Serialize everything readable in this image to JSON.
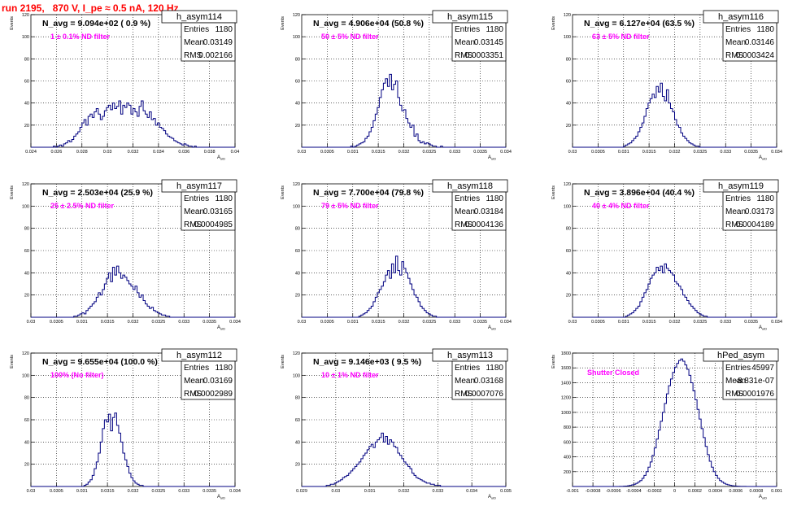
{
  "run_title": "run 2195,   870 V, I_pe ≈ 0.5 nA, 120 Hz",
  "stats_labels": {
    "entries": "Entries",
    "mean": "Mean",
    "rms": "RMS"
  },
  "colors": {
    "histogram": "#000080",
    "annotation": "#ff00ff",
    "title": "#ff0000"
  },
  "chart_data": [
    {
      "type": "histogram",
      "name": "h_asym114",
      "ylabel": "Events",
      "xlabel": "A_uiD",
      "xlim": [
        0.024,
        0.04
      ],
      "ylim": [
        0,
        120
      ],
      "xticks": [
        "0.024",
        "0.026",
        "0.028",
        "0.03",
        "0.032",
        "0.034",
        "0.036",
        "0.038",
        "0.04"
      ],
      "yticks": [
        "20",
        "40",
        "60",
        "80",
        "100",
        "120"
      ],
      "nbins": 100,
      "stats": {
        "entries": "1180",
        "mean": "0.03149",
        "rms": "0.002166"
      },
      "navg": "N_avg = 9.094e+02 ( 0.9 %)",
      "note": "1 ± 0.1% ND filter",
      "peak_count": 42,
      "values": [
        0,
        0,
        0,
        0,
        0,
        0,
        0,
        0,
        0,
        0,
        0,
        1,
        0,
        1,
        2,
        1,
        3,
        4,
        6,
        5,
        7,
        10,
        12,
        14,
        18,
        22,
        25,
        20,
        28,
        30,
        27,
        32,
        35,
        30,
        25,
        28,
        33,
        36,
        38,
        34,
        40,
        35,
        37,
        42,
        30,
        38,
        36,
        40,
        38,
        30,
        35,
        32,
        28,
        37,
        42,
        33,
        30,
        27,
        32,
        25,
        26,
        20,
        22,
        18,
        17,
        15,
        12,
        10,
        9,
        8,
        6,
        5,
        4,
        3,
        2,
        3,
        2,
        1,
        1,
        0,
        1,
        0,
        0,
        0,
        0,
        0,
        0,
        0,
        0,
        0,
        0,
        0,
        0,
        0,
        0,
        0,
        0,
        0,
        0,
        0
      ]
    },
    {
      "type": "histogram",
      "name": "h_asym115",
      "ylabel": "Events",
      "xlabel": "A_uiD",
      "xlim": [
        0.03,
        0.034
      ],
      "ylim": [
        0,
        120
      ],
      "xticks": [
        "0.03",
        "0.0305",
        "0.031",
        "0.0315",
        "0.032",
        "0.0325",
        "0.033",
        "0.0335",
        "0.034"
      ],
      "yticks": [
        "20",
        "40",
        "60",
        "80",
        "100",
        "120"
      ],
      "nbins": 100,
      "stats": {
        "entries": "1180",
        "mean": "0.03145",
        "rms": "0.0003351"
      },
      "navg": "N_avg = 4.906e+04 (50.8 %)",
      "note": "50 ± 5% ND filter",
      "peak_count": 66,
      "values": [
        0,
        0,
        0,
        0,
        0,
        0,
        0,
        0,
        0,
        0,
        0,
        0,
        0,
        0,
        0,
        0,
        0,
        0,
        0,
        0,
        0,
        0,
        0,
        0,
        1,
        0,
        1,
        2,
        3,
        4,
        5,
        8,
        10,
        14,
        18,
        24,
        30,
        36,
        45,
        52,
        58,
        62,
        55,
        66,
        52,
        57,
        60,
        45,
        38,
        33,
        34,
        26,
        22,
        18,
        20,
        10,
        12,
        6,
        4,
        5,
        3,
        4,
        3,
        2,
        1,
        1,
        0,
        0,
        1,
        0,
        0,
        0,
        0,
        0,
        0,
        0,
        0,
        0,
        0,
        0,
        0,
        0,
        0,
        0,
        0,
        0,
        0,
        0,
        0,
        0,
        0,
        0,
        0,
        0,
        0,
        0,
        0,
        0,
        0,
        0
      ]
    },
    {
      "type": "histogram",
      "name": "h_asym116",
      "ylabel": "Events",
      "xlabel": "A_uiD",
      "xlim": [
        0.03,
        0.034
      ],
      "ylim": [
        0,
        120
      ],
      "xticks": [
        "0.03",
        "0.0305",
        "0.031",
        "0.0315",
        "0.032",
        "0.0325",
        "0.033",
        "0.0335",
        "0.034"
      ],
      "yticks": [
        "20",
        "40",
        "60",
        "80",
        "100",
        "120"
      ],
      "nbins": 100,
      "stats": {
        "entries": "1180",
        "mean": "0.03146",
        "rms": "0.0003424"
      },
      "navg": "N_avg = 6.127e+04 (63.5 %)",
      "note": "63 ± 5% ND filter",
      "peak_count": 58,
      "values": [
        0,
        0,
        0,
        0,
        0,
        0,
        0,
        0,
        0,
        0,
        0,
        0,
        0,
        0,
        0,
        0,
        0,
        0,
        0,
        0,
        0,
        0,
        0,
        0,
        0,
        1,
        2,
        3,
        4,
        6,
        8,
        10,
        14,
        18,
        22,
        28,
        35,
        40,
        44,
        48,
        45,
        55,
        50,
        58,
        46,
        42,
        52,
        40,
        35,
        32,
        25,
        20,
        18,
        13,
        10,
        8,
        6,
        4,
        3,
        2,
        1,
        1,
        0,
        0,
        0,
        0,
        0,
        0,
        0,
        0,
        0,
        0,
        0,
        0,
        0,
        0,
        0,
        0,
        0,
        0,
        0,
        0,
        0,
        0,
        0,
        0,
        0,
        0,
        0,
        0,
        0,
        0,
        0,
        0,
        0,
        0,
        0,
        0,
        0,
        0
      ]
    },
    {
      "type": "histogram",
      "name": "h_asym117",
      "ylabel": "Events",
      "xlabel": "A_uiD",
      "xlim": [
        0.03,
        0.034
      ],
      "ylim": [
        0,
        120
      ],
      "xticks": [
        "0.03",
        "0.0305",
        "0.031",
        "0.0315",
        "0.032",
        "0.0325",
        "0.033",
        "0.0335",
        "0.034"
      ],
      "yticks": [
        "20",
        "40",
        "60",
        "80",
        "100",
        "120"
      ],
      "nbins": 100,
      "stats": {
        "entries": "1180",
        "mean": "0.03165",
        "rms": "0.0004985"
      },
      "navg": "N_avg = 2.503e+04 (25.9 %)",
      "note": "25 ± 2.5% ND filter",
      "peak_count": 46,
      "values": [
        0,
        0,
        0,
        0,
        0,
        0,
        0,
        0,
        0,
        0,
        0,
        0,
        0,
        0,
        0,
        0,
        0,
        0,
        0,
        0,
        0,
        1,
        1,
        2,
        3,
        4,
        3,
        6,
        8,
        10,
        12,
        14,
        18,
        22,
        20,
        25,
        30,
        35,
        40,
        32,
        45,
        38,
        46,
        40,
        35,
        38,
        36,
        33,
        30,
        28,
        25,
        28,
        22,
        18,
        20,
        15,
        12,
        10,
        8,
        9,
        6,
        5,
        4,
        3,
        2,
        2,
        1,
        1,
        0,
        0,
        0,
        0,
        0,
        0,
        0,
        0,
        0,
        0,
        0,
        0,
        0,
        0,
        0,
        0,
        0,
        0,
        0,
        0,
        0,
        0,
        0,
        0,
        0,
        0,
        0,
        0,
        0,
        0,
        0,
        0
      ]
    },
    {
      "type": "histogram",
      "name": "h_asym118",
      "ylabel": "Events",
      "xlabel": "A_uiD",
      "xlim": [
        0.03,
        0.034
      ],
      "ylim": [
        0,
        120
      ],
      "xticks": [
        "0.03",
        "0.0305",
        "0.031",
        "0.0315",
        "0.032",
        "0.0325",
        "0.033",
        "0.0335",
        "0.034"
      ],
      "yticks": [
        "20",
        "40",
        "60",
        "80",
        "100",
        "120"
      ],
      "nbins": 100,
      "stats": {
        "entries": "1180",
        "mean": "0.03184",
        "rms": "0.0004136"
      },
      "navg": "N_avg = 7.700e+04 (79.8 %)",
      "note": "79 ± 5% ND filter",
      "peak_count": 55,
      "values": [
        0,
        0,
        0,
        0,
        0,
        0,
        0,
        0,
        0,
        0,
        0,
        0,
        0,
        0,
        0,
        0,
        0,
        0,
        0,
        0,
        0,
        0,
        0,
        0,
        0,
        0,
        0,
        0,
        1,
        2,
        3,
        4,
        6,
        8,
        10,
        14,
        18,
        22,
        25,
        28,
        32,
        38,
        42,
        35,
        48,
        40,
        55,
        42,
        38,
        50,
        44,
        40,
        35,
        30,
        25,
        20,
        18,
        14,
        10,
        8,
        6,
        4,
        3,
        2,
        1,
        1,
        0,
        0,
        0,
        0,
        0,
        0,
        0,
        0,
        0,
        0,
        0,
        0,
        0,
        0,
        0,
        0,
        0,
        0,
        0,
        0,
        0,
        0,
        0,
        0,
        0,
        0,
        0,
        0,
        0,
        0,
        0,
        0,
        0,
        0
      ]
    },
    {
      "type": "histogram",
      "name": "h_asym119",
      "ylabel": "Events",
      "xlabel": "A_uiD",
      "xlim": [
        0.03,
        0.034
      ],
      "ylim": [
        0,
        120
      ],
      "xticks": [
        "0.03",
        "0.0305",
        "0.031",
        "0.0315",
        "0.032",
        "0.0325",
        "0.033",
        "0.0335",
        "0.034"
      ],
      "yticks": [
        "20",
        "40",
        "60",
        "80",
        "100",
        "120"
      ],
      "nbins": 100,
      "stats": {
        "entries": "1180",
        "mean": "0.03173",
        "rms": "0.0004189"
      },
      "navg": "N_avg = 3.896e+04 (40.4 %)",
      "note": "40 ± 4% ND filter",
      "peak_count": 48,
      "values": [
        0,
        0,
        0,
        0,
        0,
        0,
        0,
        0,
        0,
        0,
        0,
        0,
        0,
        0,
        0,
        0,
        0,
        0,
        0,
        0,
        0,
        0,
        0,
        0,
        0,
        0,
        1,
        2,
        3,
        4,
        6,
        8,
        10,
        14,
        18,
        22,
        25,
        30,
        35,
        38,
        40,
        45,
        42,
        46,
        40,
        48,
        44,
        42,
        40,
        38,
        32,
        30,
        28,
        25,
        20,
        18,
        15,
        12,
        10,
        8,
        6,
        4,
        3,
        2,
        1,
        1,
        0,
        0,
        0,
        0,
        0,
        0,
        0,
        0,
        0,
        0,
        0,
        0,
        0,
        0,
        0,
        0,
        0,
        0,
        0,
        0,
        0,
        0,
        0,
        0,
        0,
        0,
        0,
        0,
        0,
        0,
        0,
        0,
        0,
        0
      ]
    },
    {
      "type": "histogram",
      "name": "h_asym112",
      "ylabel": "Events",
      "xlabel": "A_uiD",
      "xlim": [
        0.03,
        0.034
      ],
      "ylim": [
        0,
        120
      ],
      "xticks": [
        "0.03",
        "0.0305",
        "0.031",
        "0.0315",
        "0.032",
        "0.0325",
        "0.033",
        "0.0335",
        "0.034"
      ],
      "yticks": [
        "20",
        "40",
        "60",
        "80",
        "100",
        "120"
      ],
      "nbins": 100,
      "stats": {
        "entries": "1180",
        "mean": "0.03169",
        "rms": "0.0002989"
      },
      "navg": "N_avg = 9.655e+04 (100.0 %)",
      "note": "100% (No filter)",
      "peak_count": 68,
      "values": [
        0,
        0,
        0,
        0,
        0,
        0,
        0,
        0,
        0,
        0,
        0,
        0,
        0,
        0,
        0,
        0,
        0,
        0,
        0,
        0,
        0,
        0,
        0,
        0,
        0,
        0,
        1,
        2,
        4,
        6,
        10,
        16,
        22,
        30,
        40,
        52,
        60,
        58,
        65,
        50,
        62,
        66,
        55,
        48,
        40,
        30,
        24,
        18,
        12,
        8,
        5,
        3,
        2,
        1,
        1,
        0,
        0,
        0,
        0,
        0,
        0,
        0,
        0,
        0,
        0,
        0,
        0,
        0,
        0,
        0,
        0,
        0,
        0,
        0,
        0,
        0,
        0,
        0,
        0,
        0,
        0,
        0,
        0,
        0,
        0,
        0,
        0,
        0,
        0,
        0,
        0,
        0,
        0,
        0,
        0,
        0,
        0,
        0,
        0,
        0
      ]
    },
    {
      "type": "histogram",
      "name": "h_asym113",
      "ylabel": "Events",
      "xlabel": "A_uiD",
      "xlim": [
        0.029,
        0.035
      ],
      "ylim": [
        0,
        120
      ],
      "xticks": [
        "0.029",
        "0.03",
        "0.031",
        "0.032",
        "0.033",
        "0.034",
        "0.035"
      ],
      "yticks": [
        "20",
        "40",
        "60",
        "80",
        "100",
        "120"
      ],
      "nbins": 100,
      "stats": {
        "entries": "1180",
        "mean": "0.03168",
        "rms": "0.0007076"
      },
      "navg": "N_avg = 9.146e+03 ( 9.5 %)",
      "note": "10 ± 1% ND filter",
      "peak_count": 48,
      "values": [
        0,
        0,
        0,
        0,
        0,
        0,
        0,
        0,
        0,
        0,
        0,
        0,
        1,
        1,
        2,
        2,
        3,
        4,
        5,
        6,
        8,
        9,
        10,
        12,
        14,
        16,
        18,
        20,
        22,
        25,
        28,
        30,
        33,
        36,
        38,
        35,
        40,
        42,
        44,
        48,
        40,
        45,
        38,
        42,
        40,
        36,
        35,
        30,
        28,
        25,
        22,
        20,
        18,
        16,
        12,
        10,
        8,
        7,
        6,
        5,
        4,
        3,
        3,
        2,
        2,
        1,
        1,
        1,
        0,
        0,
        0,
        0,
        0,
        0,
        0,
        0,
        0,
        0,
        0,
        0,
        0,
        0,
        0,
        0,
        0,
        0,
        0,
        0,
        0,
        0,
        0,
        0,
        0,
        0,
        0,
        0,
        0,
        0,
        0,
        0
      ]
    },
    {
      "type": "histogram",
      "name": "hPed_asym",
      "ylabel": "Events",
      "xlabel": "A_uiD",
      "xlim": [
        -0.001,
        0.001
      ],
      "ylim": [
        0,
        1800
      ],
      "xticks": [
        "-0.001",
        "-0.0008",
        "-0.0006",
        "-0.0004",
        "-0.0002",
        "0",
        "0.0002",
        "0.0004",
        "0.0006",
        "0.0008",
        "0.001"
      ],
      "yticks": [
        "200",
        "400",
        "600",
        "800",
        "1000",
        "1200",
        "1400",
        "1600",
        "1800"
      ],
      "nbins": 100,
      "stats": {
        "entries": "45997",
        "mean": "-8.831e-07",
        "rms": "0.0001976"
      },
      "navg": "",
      "note": "Shutter Closed",
      "peak_count": 1720,
      "values": [
        0,
        0,
        0,
        0,
        0,
        0,
        0,
        0,
        0,
        0,
        0,
        0,
        0,
        0,
        0,
        0,
        0,
        0,
        0,
        0,
        0,
        0,
        0,
        1,
        2,
        4,
        6,
        10,
        15,
        22,
        30,
        42,
        60,
        80,
        110,
        150,
        200,
        260,
        330,
        420,
        520,
        640,
        760,
        880,
        1000,
        1120,
        1250,
        1360,
        1450,
        1540,
        1610,
        1660,
        1700,
        1720,
        1690,
        1640,
        1580,
        1500,
        1400,
        1290,
        1170,
        1040,
        910,
        780,
        660,
        540,
        430,
        340,
        260,
        200,
        150,
        110,
        80,
        60,
        42,
        30,
        22,
        15,
        10,
        7,
        4,
        3,
        2,
        1,
        1,
        0,
        0,
        0,
        0,
        0,
        0,
        0,
        0,
        0,
        0,
        0,
        0,
        0,
        0,
        0
      ]
    }
  ]
}
